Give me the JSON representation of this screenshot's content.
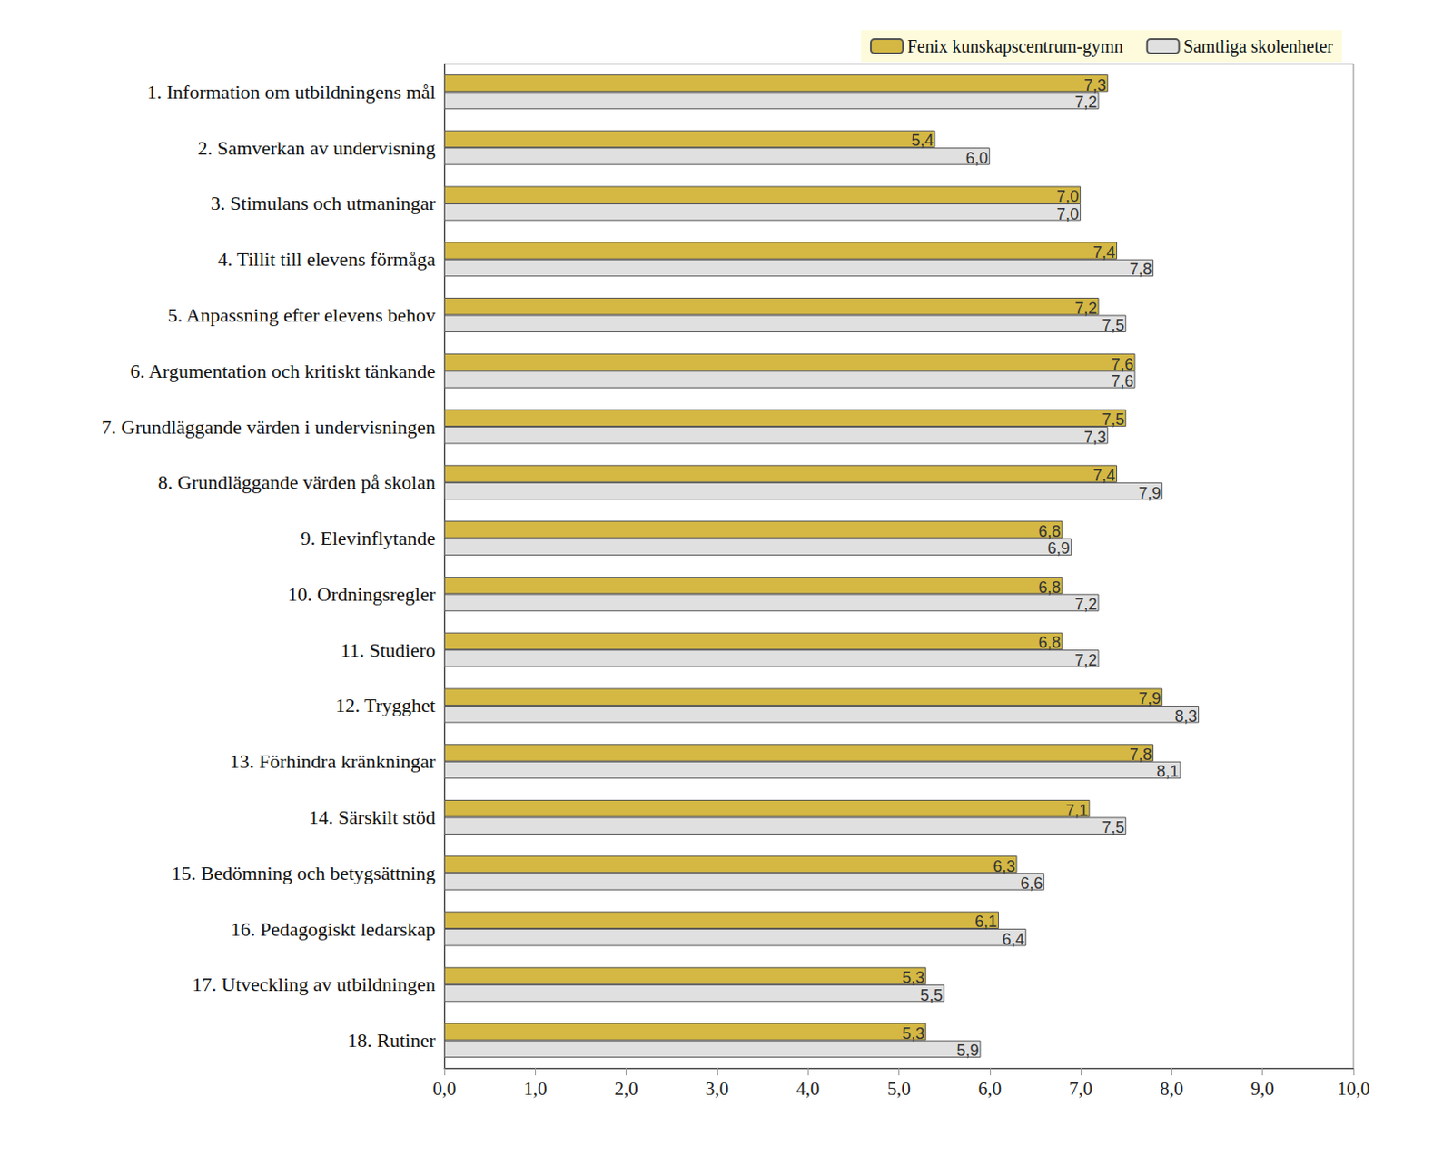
{
  "chart_data": {
    "type": "bar",
    "orientation": "horizontal",
    "categories": [
      "1. Information om utbildningens mål",
      "2. Samverkan av undervisning",
      "3. Stimulans och utmaningar",
      "4. Tillit till elevens förmåga",
      "5. Anpassning efter elevens behov",
      "6. Argumentation och kritiskt tänkande",
      "7. Grundläggande värden i undervisningen",
      "8. Grundläggande värden på skolan",
      "9. Elevinflytande",
      "10. Ordningsregler",
      "11. Studiero",
      "12. Trygghet",
      "13. Förhindra kränkningar",
      "14. Särskilt stöd",
      "15. Bedömning och betygsättning",
      "16. Pedagogiskt ledarskap",
      "17. Utveckling av utbildningen",
      "18. Rutiner"
    ],
    "series": [
      {
        "name": "Fenix kunskapscentrum-gymn",
        "color": "#d4b843",
        "values": [
          7.3,
          5.4,
          7.0,
          7.4,
          7.2,
          7.6,
          7.5,
          7.4,
          6.8,
          6.8,
          6.8,
          7.9,
          7.8,
          7.1,
          6.3,
          6.1,
          5.3,
          5.3
        ],
        "value_labels": [
          "7,3",
          "5,4",
          "7,0",
          "7,4",
          "7,2",
          "7,6",
          "7,5",
          "7,4",
          "6,8",
          "6,8",
          "6,8",
          "7,9",
          "7,8",
          "7,1",
          "6,3",
          "6,1",
          "5,3",
          "5,3"
        ]
      },
      {
        "name": "Samtliga skolenheter",
        "color": "#e0e0e0",
        "values": [
          7.2,
          6.0,
          7.0,
          7.8,
          7.5,
          7.6,
          7.3,
          7.9,
          6.9,
          7.2,
          7.2,
          8.3,
          8.1,
          7.5,
          6.6,
          6.4,
          5.5,
          5.9
        ],
        "value_labels": [
          "7,2",
          "6,0",
          "7,0",
          "7,8",
          "7,5",
          "7,6",
          "7,3",
          "7,9",
          "6,9",
          "7,2",
          "7,2",
          "8,3",
          "8,1",
          "7,5",
          "6,6",
          "6,4",
          "5,5",
          "5,9"
        ]
      }
    ],
    "xlim": [
      0,
      10
    ],
    "xticks": [
      {
        "value": 0,
        "label": "0,0"
      },
      {
        "value": 1,
        "label": "1,0"
      },
      {
        "value": 2,
        "label": "2,0"
      },
      {
        "value": 3,
        "label": "3,0"
      },
      {
        "value": 4,
        "label": "4,0"
      },
      {
        "value": 5,
        "label": "5,0"
      },
      {
        "value": 6,
        "label": "6,0"
      },
      {
        "value": 7,
        "label": "7,0"
      },
      {
        "value": 8,
        "label": "8,0"
      },
      {
        "value": 9,
        "label": "9,0"
      },
      {
        "value": 10,
        "label": "10,0"
      }
    ],
    "legend": "top-right",
    "data_labels": true,
    "grid": false
  }
}
